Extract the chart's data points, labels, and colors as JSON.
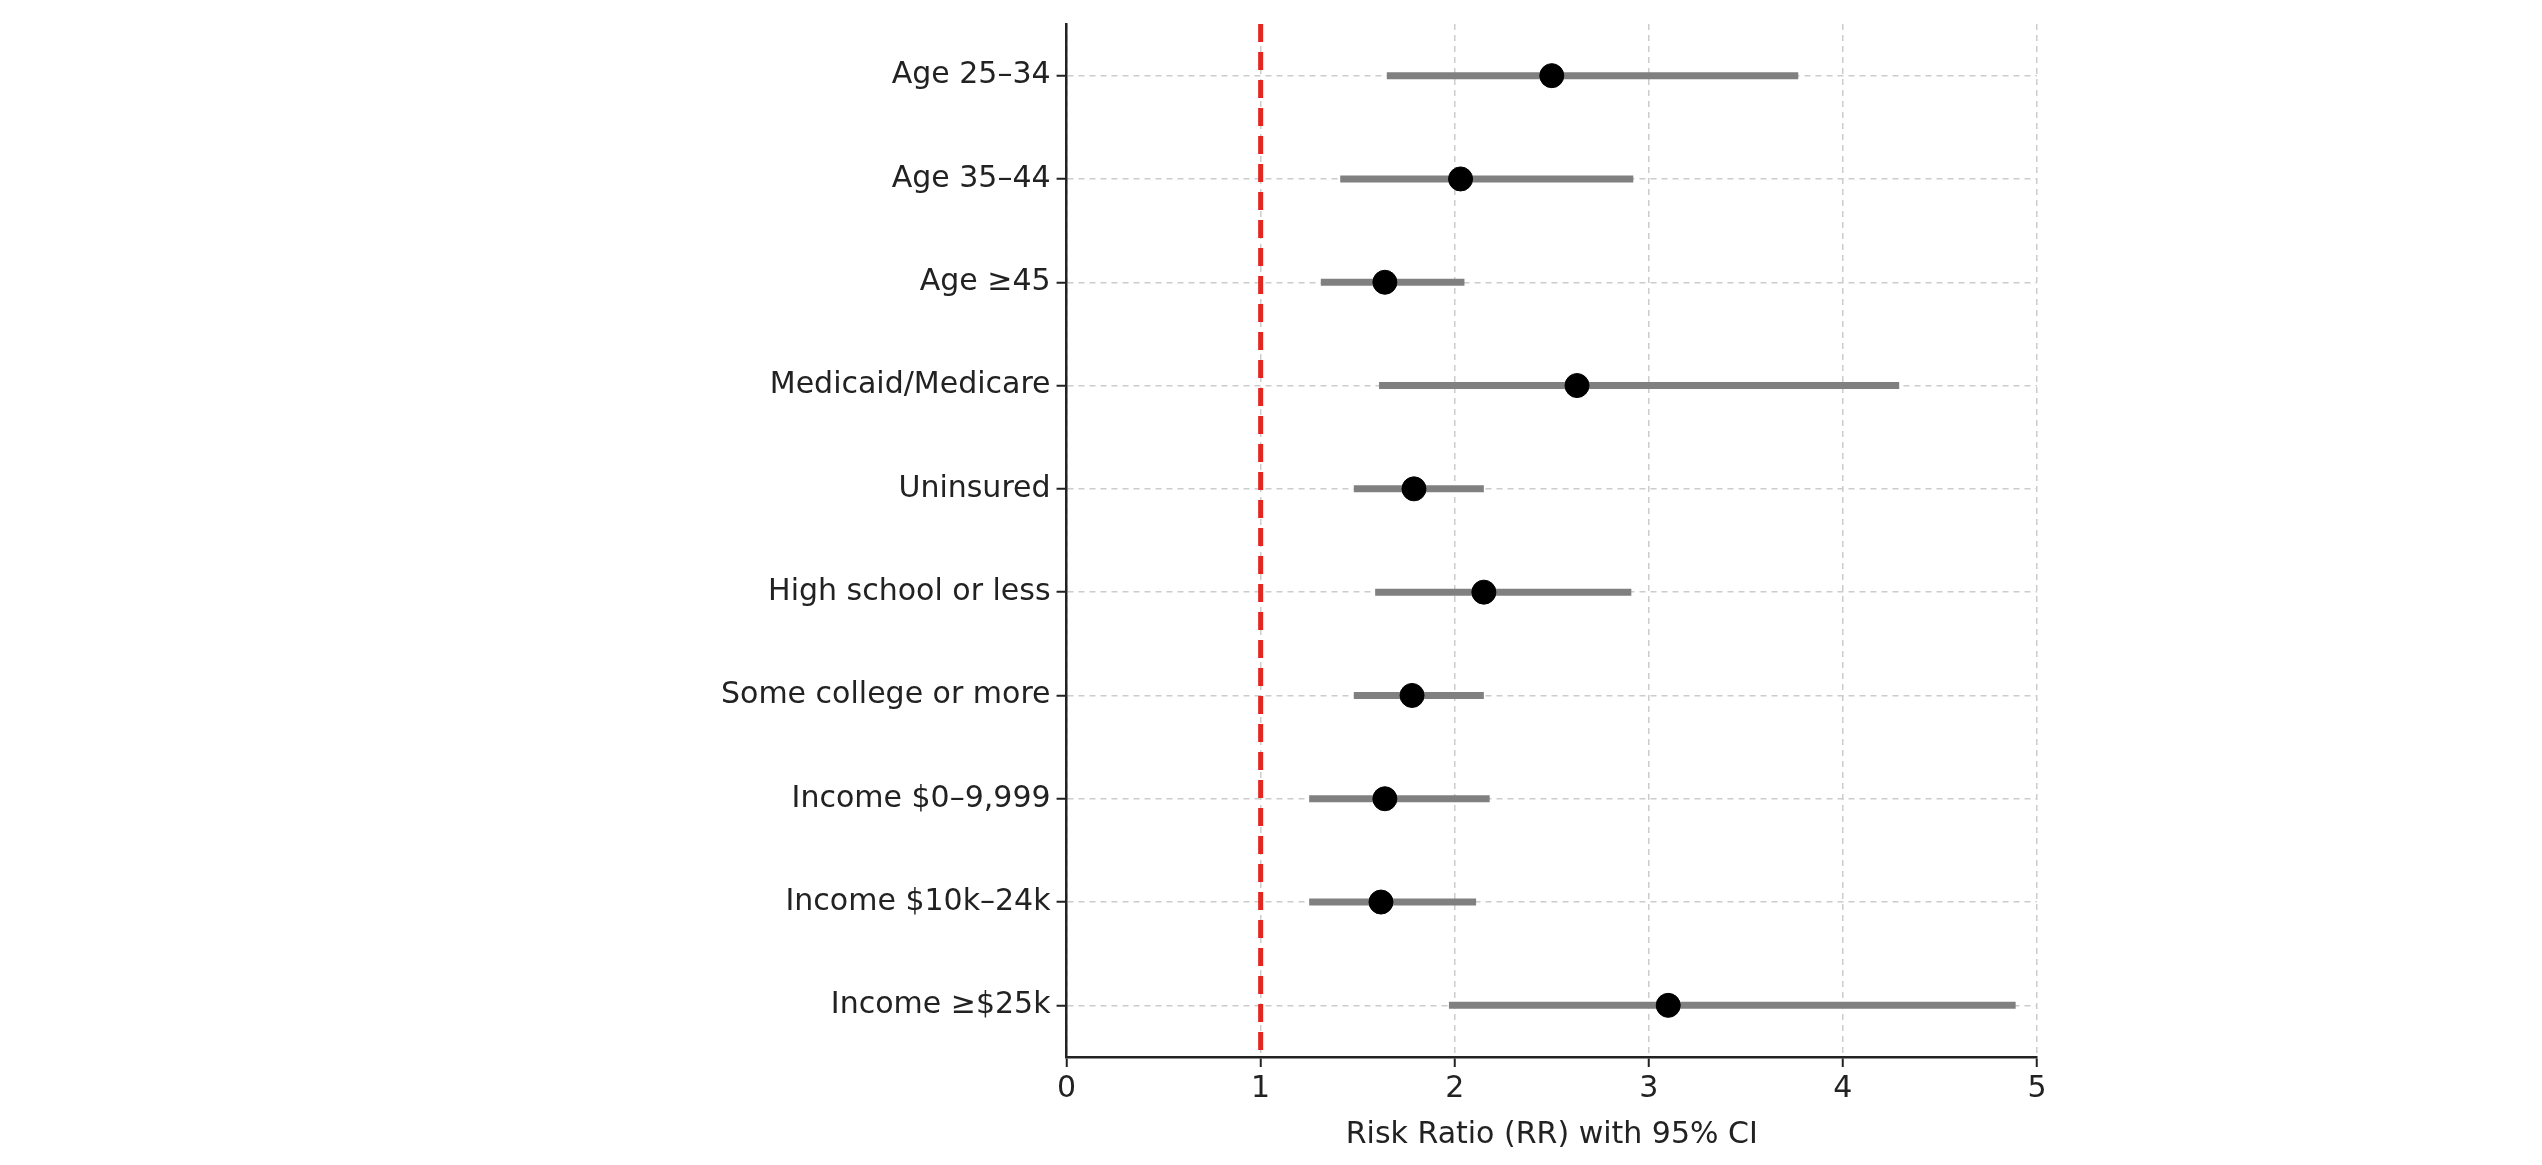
{
  "chart_data": {
    "type": "scatter",
    "orientation": "horizontal",
    "xlabel": "Risk Ratio (RR) with 95% CI",
    "categories": [
      "Age 25–34",
      "Age 35–44",
      "Age ≥45",
      "Medicaid/Medicare",
      "Uninsured",
      "High school or less",
      "Some college or more",
      "Income $0–9,999",
      "Income $10k–24k",
      "Income ≥$25k"
    ],
    "values": [
      2.5,
      2.03,
      1.64,
      2.63,
      1.79,
      2.15,
      1.78,
      1.64,
      1.62,
      3.1
    ],
    "errors": [
      [
        1.65,
        3.77
      ],
      [
        1.41,
        2.92
      ],
      [
        1.31,
        2.05
      ],
      [
        1.61,
        4.29
      ],
      [
        1.48,
        2.15
      ],
      [
        1.59,
        2.91
      ],
      [
        1.48,
        2.15
      ],
      [
        1.25,
        2.18
      ],
      [
        1.25,
        2.11
      ],
      [
        1.97,
        4.89
      ]
    ],
    "color": "#000000",
    "marker": "circle",
    "xlim": [
      0,
      5
    ],
    "xticks": [
      0,
      1,
      2,
      3,
      4,
      5
    ],
    "grid": true,
    "ref_lines": [
      {
        "axis": "x",
        "value": 1,
        "color": "#e3261f",
        "line_style": "dashed"
      }
    ]
  }
}
